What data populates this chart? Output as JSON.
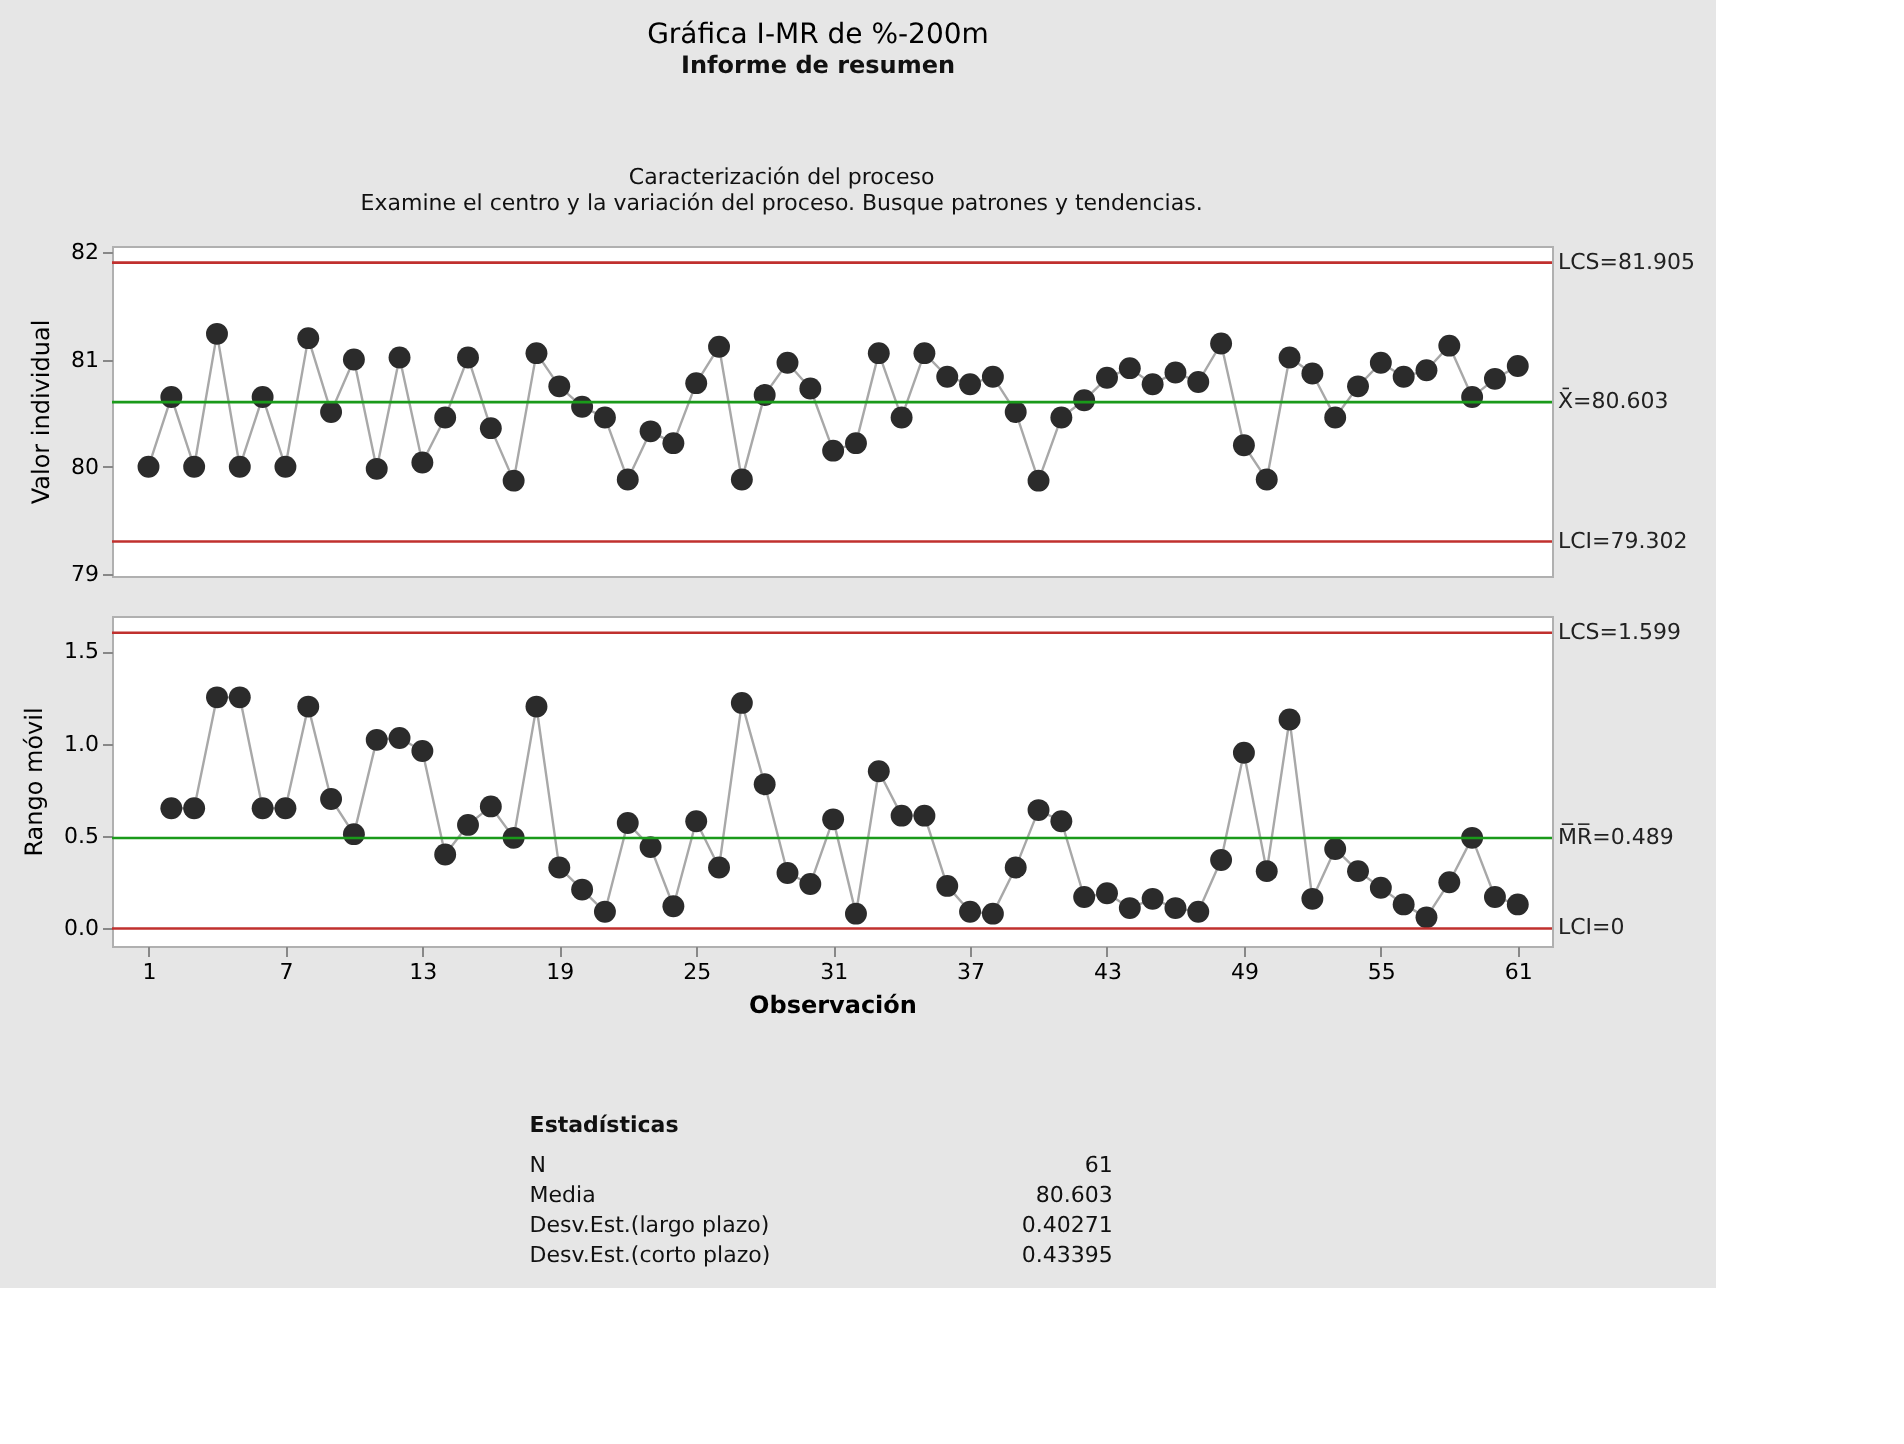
{
  "chart_data": [
    {
      "type": "line",
      "title": "Gráfica I-MR de %-200m",
      "subtitle": "Informe de resumen",
      "ylabel": "Valor individual",
      "marker": "circle",
      "line_style": "solid",
      "tick_labels": "y",
      "annotations": [
        "Caracterización del proceso",
        "Examine el centro y la variación del proceso. Busque patrones y tendencias."
      ],
      "xlim": [
        -0.6,
        62.5
      ],
      "ylim": [
        78.98,
        82.06
      ],
      "yticks": [
        79,
        80,
        81,
        82
      ],
      "x": [
        1,
        2,
        3,
        4,
        5,
        6,
        7,
        8,
        9,
        10,
        11,
        12,
        13,
        14,
        15,
        16,
        17,
        18,
        19,
        20,
        21,
        22,
        23,
        24,
        25,
        26,
        27,
        28,
        29,
        30,
        31,
        32,
        33,
        34,
        35,
        36,
        37,
        38,
        39,
        40,
        41,
        42,
        43,
        44,
        45,
        46,
        47,
        48,
        49,
        50,
        51,
        52,
        53,
        54,
        55,
        56,
        57,
        58,
        59,
        60,
        61
      ],
      "series": [
        {
          "color": "#2b2b2b",
          "values": [
            80.0,
            80.65,
            80.0,
            81.24,
            80.0,
            80.65,
            80.0,
            81.2,
            80.51,
            81.0,
            79.98,
            81.02,
            80.04,
            80.46,
            81.02,
            80.36,
            79.87,
            81.06,
            80.75,
            80.56,
            80.46,
            79.88,
            80.33,
            80.22,
            80.78,
            81.12,
            79.88,
            80.67,
            80.97,
            80.73,
            80.15,
            80.22,
            81.06,
            80.46,
            81.06,
            80.84,
            80.77,
            80.84,
            80.51,
            79.87,
            80.46,
            80.62,
            80.83,
            80.92,
            80.77,
            80.88,
            80.79,
            81.15,
            80.2,
            79.88,
            81.02,
            80.87,
            80.46,
            80.75,
            80.97,
            80.84,
            80.9,
            81.13,
            80.65,
            80.82,
            80.94
          ]
        }
      ],
      "ref_lines": [
        {
          "axis": "y",
          "value": 81.905,
          "label": "LCS=81.905",
          "color": "#c0302e"
        },
        {
          "axis": "y",
          "value": 80.603,
          "label": "X̄=80.603",
          "color": "#1a9a1a"
        },
        {
          "axis": "y",
          "value": 79.302,
          "label": "LCI=79.302",
          "color": "#c0302e"
        }
      ]
    },
    {
      "type": "line",
      "xlabel": "Observación",
      "ylabel": "Rango móvil",
      "marker": "circle",
      "line_style": "solid",
      "annotations": [
        "Estadísticas",
        "N",
        "61",
        "Media",
        "80.603",
        "Desv.Est.(largo plazo)",
        "0.40271",
        "Desv.Est.(corto plazo)",
        "0.43395"
      ],
      "xlim": [
        -0.6,
        62.5
      ],
      "xticks": [
        1,
        7,
        13,
        19,
        25,
        31,
        37,
        43,
        49,
        55,
        61
      ],
      "ylim": [
        -0.095,
        1.69
      ],
      "yticks": [
        {
          "value": 0,
          "label": "0.0"
        },
        0.5,
        {
          "value": 1,
          "label": "1.0"
        },
        1.5
      ],
      "x": [
        2,
        3,
        4,
        5,
        6,
        7,
        8,
        9,
        10,
        11,
        12,
        13,
        14,
        15,
        16,
        17,
        18,
        19,
        20,
        21,
        22,
        23,
        24,
        25,
        26,
        27,
        28,
        29,
        30,
        31,
        32,
        33,
        34,
        35,
        36,
        37,
        38,
        39,
        40,
        41,
        42,
        43,
        44,
        45,
        46,
        47,
        48,
        49,
        50,
        51,
        52,
        53,
        54,
        55,
        56,
        57,
        58,
        59,
        60,
        61
      ],
      "series": [
        {
          "color": "#2b2b2b",
          "values": [
            0.65,
            0.65,
            1.25,
            1.25,
            0.65,
            0.65,
            1.2,
            0.7,
            0.51,
            1.02,
            1.03,
            0.96,
            0.4,
            0.56,
            0.66,
            0.49,
            1.2,
            0.33,
            0.21,
            0.09,
            0.57,
            0.44,
            0.12,
            0.58,
            0.33,
            1.22,
            0.78,
            0.3,
            0.24,
            0.59,
            0.08,
            0.85,
            0.61,
            0.61,
            0.23,
            0.09,
            0.08,
            0.33,
            0.64,
            0.58,
            0.17,
            0.19,
            0.11,
            0.16,
            0.11,
            0.09,
            0.37,
            0.95,
            0.31,
            1.13,
            0.16,
            0.43,
            0.31,
            0.22,
            0.13,
            0.06,
            0.25,
            0.49,
            0.17,
            0.13
          ]
        }
      ],
      "ref_lines": [
        {
          "axis": "y",
          "value": 1.599,
          "label": "LCS=1.599",
          "color": "#c0302e"
        },
        {
          "axis": "y",
          "value": 0.489,
          "label": "M̅R̅=0.489",
          "color": "#1a9a1a"
        },
        {
          "axis": "y",
          "value": 0,
          "label": "LCI=0",
          "color": "#c0302e"
        }
      ]
    }
  ]
}
